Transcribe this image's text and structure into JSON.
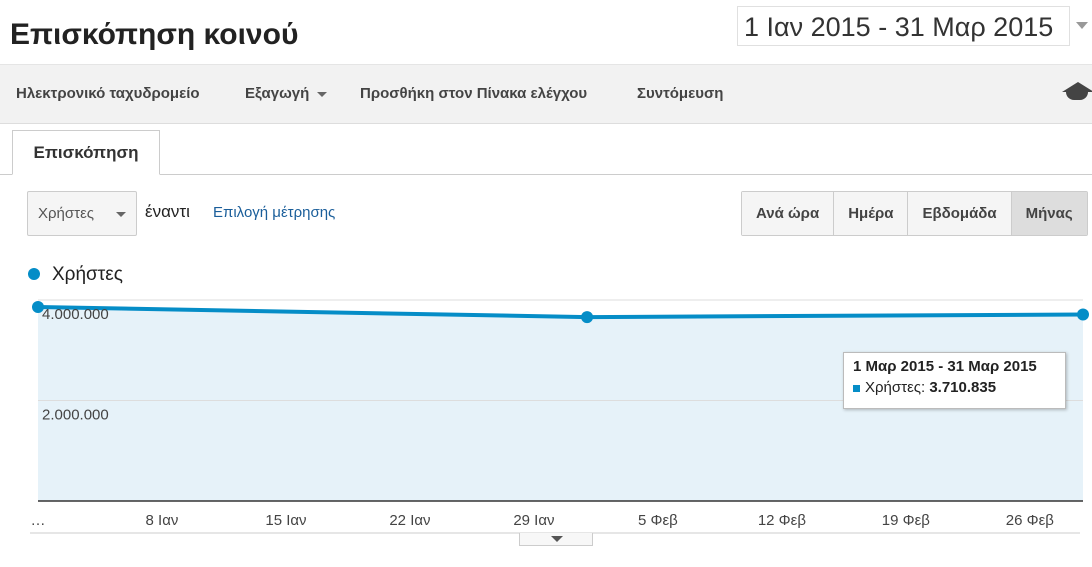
{
  "header": {
    "title": "Επισκόπηση κοινού",
    "date_range": "1 Ιαν 2015 - 31 Μαρ 2015"
  },
  "toolbar": [
    "Ηλεκτρονικό ταχυδρομείο",
    "Εξαγωγή",
    "Προσθήκη στον Πίνακα ελέγχου",
    "Συντόμευση"
  ],
  "tab": "Επισκόπηση",
  "controls": {
    "metric": "Χρήστες",
    "versus": "έναντι",
    "choose_metric": "Επιλογή μέτρησης",
    "periods": [
      "Ανά ώρα",
      "Ημέρα",
      "Εβδομάδα",
      "Μήνας"
    ]
  },
  "tooltip": {
    "title": "1 Μαρ 2015 - 31 Μαρ 2015",
    "label": "Χρήστες:"
  },
  "chart_data": {
    "type": "line",
    "x": [
      0,
      31,
      59
    ],
    "series": [
      {
        "name": "Χρήστες",
        "color": "#058dc7",
        "values": [
          3860000,
          3660000,
          3710835
        ],
        "value_labels": [
          null,
          null,
          "3.710.835"
        ]
      }
    ],
    "xlim": [
      0,
      59
    ],
    "xticks": [
      {
        "value": 0,
        "label": "…"
      },
      {
        "value": 7,
        "label": "8 Ιαν"
      },
      {
        "value": 14,
        "label": "15 Ιαν"
      },
      {
        "value": 21,
        "label": "22 Ιαν"
      },
      {
        "value": 28,
        "label": "29 Ιαν"
      },
      {
        "value": 35,
        "label": "5 Φεβ"
      },
      {
        "value": 42,
        "label": "12 Φεβ"
      },
      {
        "value": 49,
        "label": "19 Φεβ"
      },
      {
        "value": 56,
        "label": "26 Φεβ"
      }
    ],
    "ylim": [
      0,
      4000000
    ],
    "yticks": [
      {
        "value": 2000000,
        "label": "2.000.000"
      },
      {
        "value": 4000000,
        "label": "4.000.000"
      }
    ],
    "grid": true
  }
}
